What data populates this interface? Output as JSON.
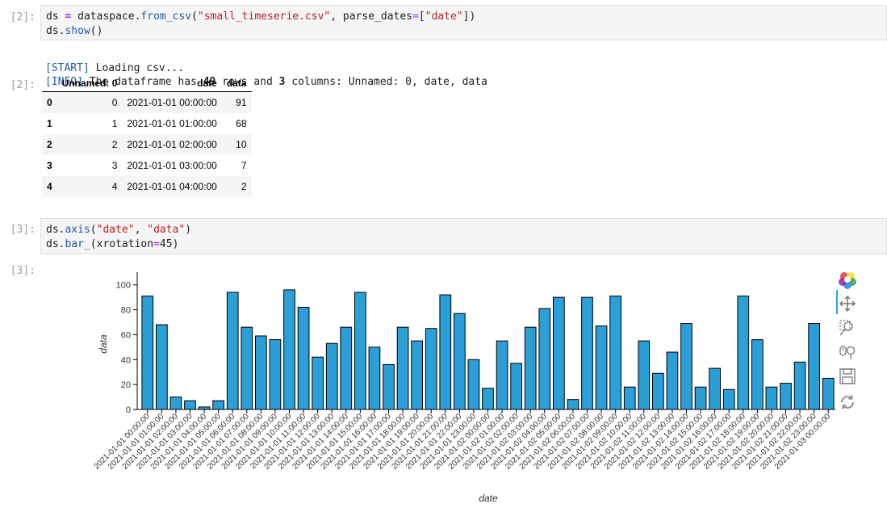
{
  "cells": [
    {
      "prompt": "[2]:",
      "code": [
        [
          [
            "ds",
            "var"
          ],
          [
            " ",
            "var"
          ],
          [
            "=",
            "op"
          ],
          [
            " dataspace",
            "var"
          ],
          [
            ".",
            "dot"
          ],
          [
            "from_csv",
            "fn"
          ],
          [
            "(",
            "var"
          ],
          [
            "\"small_timeserie.csv\"",
            "str"
          ],
          [
            ", parse_dates",
            "var"
          ],
          [
            "=",
            "eq"
          ],
          [
            "[",
            "var"
          ],
          [
            "\"date\"",
            "str"
          ],
          [
            "])",
            "var"
          ]
        ],
        [
          [
            "ds",
            "var"
          ],
          [
            ".",
            "dot"
          ],
          [
            "show",
            "fn"
          ],
          [
            "()",
            "var"
          ]
        ]
      ]
    },
    {
      "prompt": "[3]:",
      "code": [
        [
          [
            "ds",
            "var"
          ],
          [
            ".",
            "dot"
          ],
          [
            "axis",
            "fn"
          ],
          [
            "(",
            "var"
          ],
          [
            "\"date\"",
            "str"
          ],
          [
            ", ",
            "var"
          ],
          [
            "\"data\"",
            "str"
          ],
          [
            ")",
            "var"
          ]
        ],
        [
          [
            "ds",
            "var"
          ],
          [
            ".",
            "dot"
          ],
          [
            "bar_",
            "fn"
          ],
          [
            "(xrotation",
            "var"
          ],
          [
            "=",
            "eq"
          ],
          [
            "45",
            "var"
          ],
          [
            ")",
            "var"
          ]
        ]
      ]
    }
  ],
  "output2_prompt": "[2]:",
  "output3_prompt": "[3]:",
  "stream_lines": {
    "start_tag": "[START]",
    "start_text": " Loading csv...",
    "info_tag": "[INFO]",
    "info_text_1": " The dataframe has ",
    "rows": "49",
    "info_text_2": " rows and ",
    "cols": "3",
    "info_text_3": " columns: Unnamed: 0, date, data"
  },
  "dataframe": {
    "columns": [
      "Unnamed: 0",
      "date",
      "data"
    ],
    "rows": [
      {
        "index": "0",
        "unnamed": "0",
        "date": "2021-01-01 00:00:00",
        "data": "91"
      },
      {
        "index": "1",
        "unnamed": "1",
        "date": "2021-01-01 01:00:00",
        "data": "68"
      },
      {
        "index": "2",
        "unnamed": "2",
        "date": "2021-01-01 02:00:00",
        "data": "10"
      },
      {
        "index": "3",
        "unnamed": "3",
        "date": "2021-01-01 03:00:00",
        "data": "7"
      },
      {
        "index": "4",
        "unnamed": "4",
        "date": "2021-01-01 04:00:00",
        "data": "2"
      }
    ]
  },
  "toolbar": {
    "icons": [
      "bokeh-logo-icon",
      "pan-icon",
      "box-zoom-icon",
      "wheel-zoom-icon",
      "save-icon",
      "reset-icon"
    ]
  },
  "chart_data": {
    "type": "bar",
    "xlabel": "date",
    "ylabel": "data",
    "ylim": [
      0,
      105
    ],
    "yticks": [
      0,
      20,
      40,
      60,
      80,
      100
    ],
    "bar_color": "#2a9fd8",
    "categories": [
      "2021-01-01 00:00:00",
      "2021-01-01 01:00:00",
      "2021-01-01 02:00:00",
      "2021-01-01 03:00:00",
      "2021-01-01 04:00:00",
      "2021-01-01 05:00:00",
      "2021-01-01 06:00:00",
      "2021-01-01 07:00:00",
      "2021-01-01 08:00:00",
      "2021-01-01 09:00:00",
      "2021-01-01 10:00:00",
      "2021-01-01 11:00:00",
      "2021-01-01 12:00:00",
      "2021-01-01 13:00:00",
      "2021-01-01 14:00:00",
      "2021-01-01 15:00:00",
      "2021-01-01 16:00:00",
      "2021-01-01 17:00:00",
      "2021-01-01 18:00:00",
      "2021-01-01 19:00:00",
      "2021-01-01 20:00:00",
      "2021-01-01 21:00:00",
      "2021-01-01 22:00:00",
      "2021-01-01 23:00:00",
      "2021-01-02 00:00:00",
      "2021-01-02 01:00:00",
      "2021-01-02 02:00:00",
      "2021-01-02 03:00:00",
      "2021-01-02 04:00:00",
      "2021-01-02 05:00:00",
      "2021-01-02 06:00:00",
      "2021-01-02 07:00:00",
      "2021-01-02 08:00:00",
      "2021-01-02 09:00:00",
      "2021-01-02 10:00:00",
      "2021-01-02 11:00:00",
      "2021-01-02 12:00:00",
      "2021-01-02 13:00:00",
      "2021-01-02 14:00:00",
      "2021-01-02 15:00:00",
      "2021-01-02 16:00:00",
      "2021-01-02 17:00:00",
      "2021-01-02 18:00:00",
      "2021-01-02 19:00:00",
      "2021-01-02 20:00:00",
      "2021-01-02 21:00:00",
      "2021-01-02 22:00:00",
      "2021-01-02 23:00:00",
      "2021-01-03 00:00:00"
    ],
    "values": [
      91,
      68,
      10,
      7,
      2,
      7,
      94,
      66,
      59,
      56,
      96,
      82,
      42,
      53,
      66,
      94,
      50,
      36,
      66,
      55,
      65,
      92,
      77,
      40,
      17,
      55,
      37,
      66,
      81,
      90,
      8,
      90,
      67,
      91,
      18,
      55,
      29,
      46,
      69,
      18,
      33,
      16,
      91,
      56,
      18,
      21,
      38,
      69,
      25
    ]
  }
}
